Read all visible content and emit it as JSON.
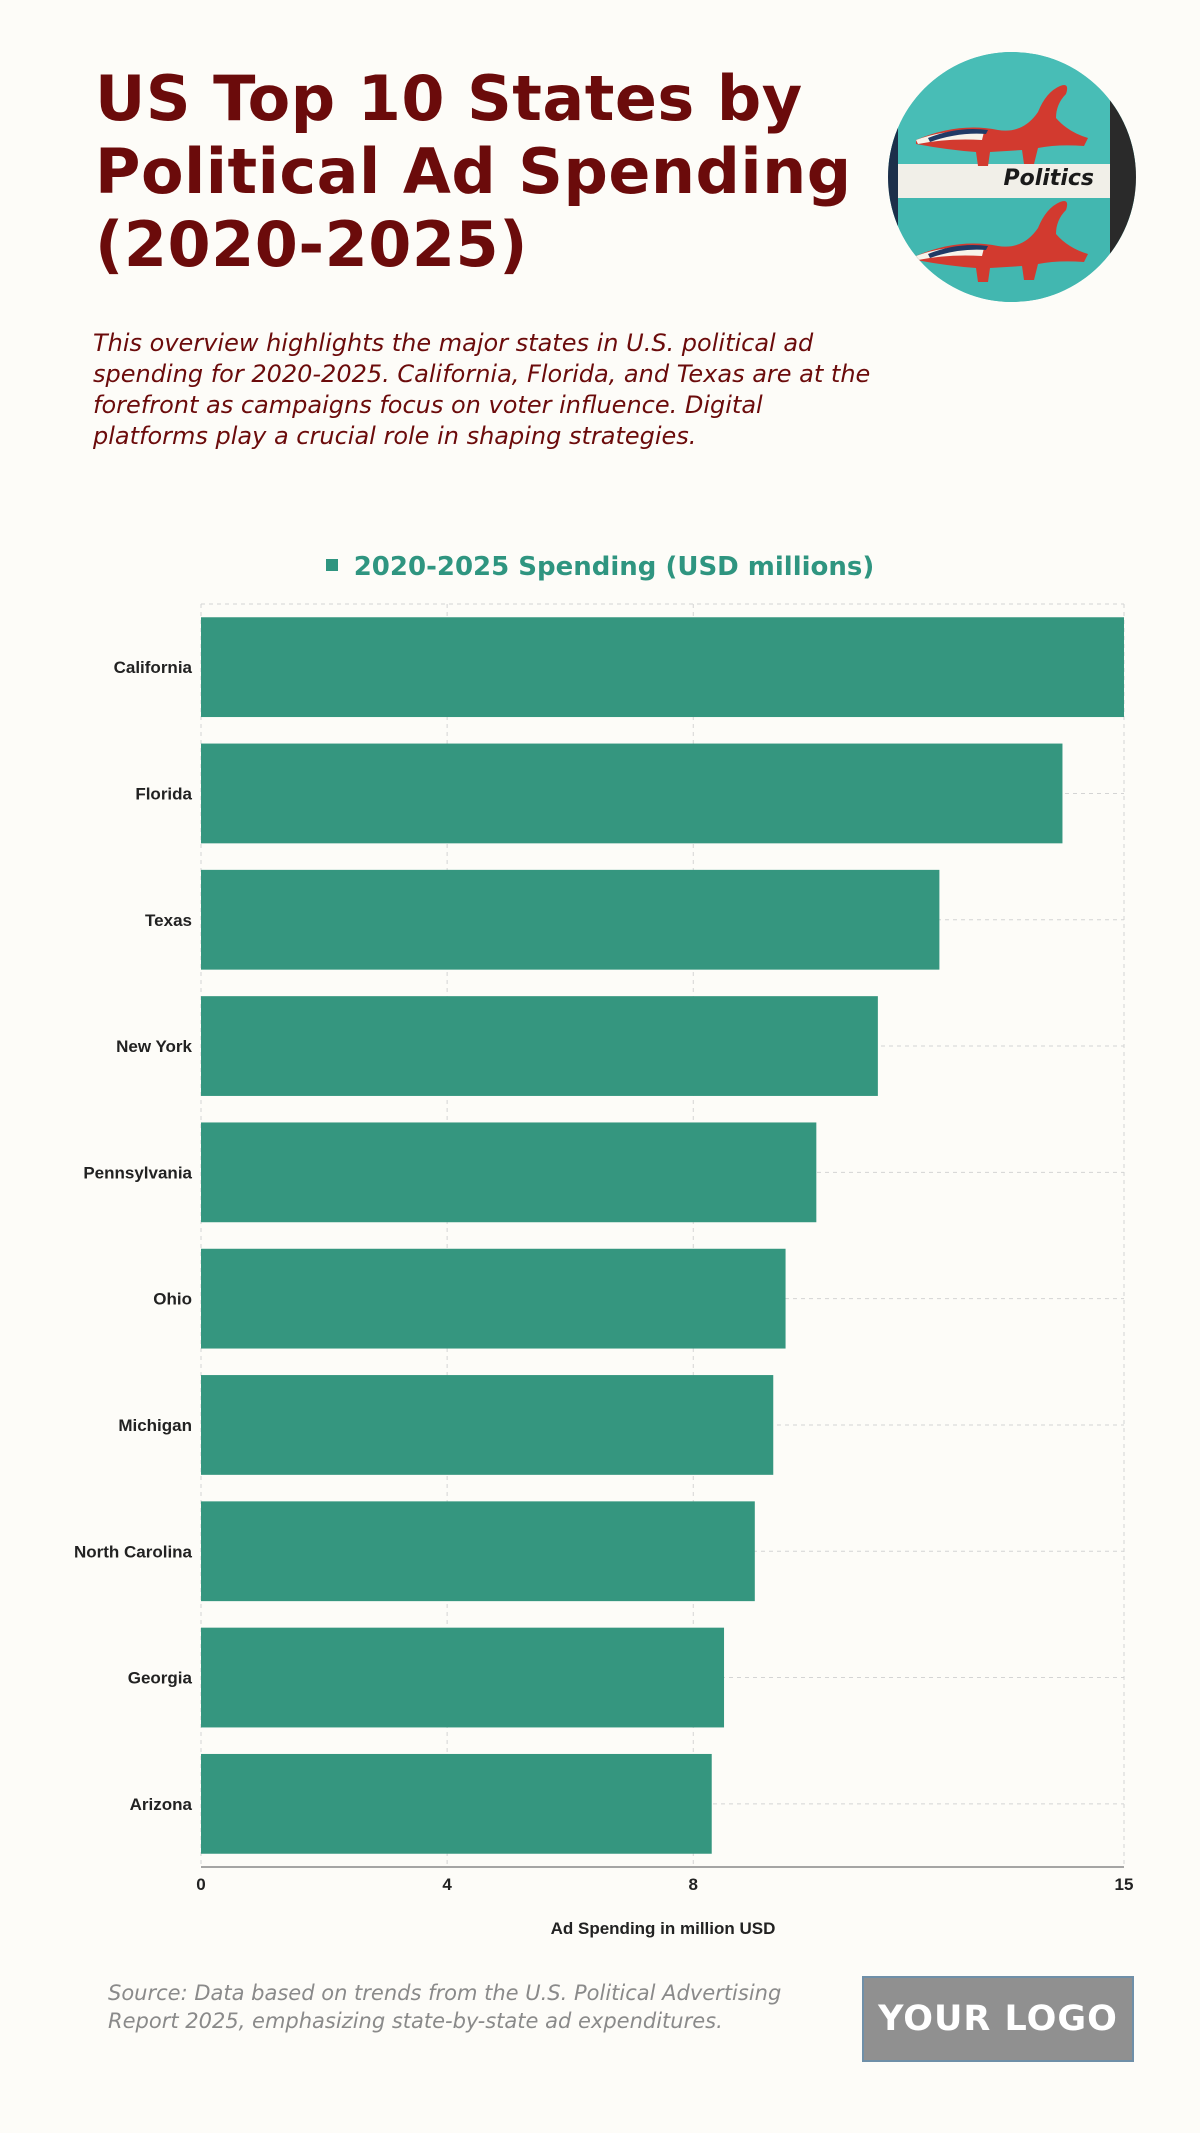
{
  "header": {
    "title": "US Top 10 States by Political Ad Spending (2020-2025)",
    "subtitle": "This overview highlights the major states in U.S. political ad spending for 2020-2025. California, Florida, and Texas are at the forefront as campaigns focus on voter influence. Digital platforms play a crucial role in shaping strategies."
  },
  "badge": {
    "label": "Politics"
  },
  "chart_data": {
    "type": "bar",
    "orientation": "horizontal",
    "categories": [
      "California",
      "Florida",
      "Texas",
      "New York",
      "Pennsylvania",
      "Ohio",
      "Michigan",
      "North Carolina",
      "Georgia",
      "Arizona"
    ],
    "series": [
      {
        "name": "2020-2025 Spending (USD millions)",
        "values": [
          15.0,
          14.0,
          12.0,
          11.0,
          10.0,
          9.5,
          9.3,
          9.0,
          8.5,
          8.3
        ]
      }
    ],
    "xlabel": "Ad Spending in million USD",
    "ylabel": "",
    "xlim": [
      0,
      15
    ],
    "xticks": [
      0,
      4,
      8,
      15
    ],
    "grid": true,
    "legend_position": "top",
    "bar_color": "#35967f"
  },
  "footer": {
    "source": "Source: Data based on trends from the U.S. Political Advertising Report 2025, emphasizing state-by-state ad expenditures.",
    "logo_text": "YOUR LOGO"
  }
}
